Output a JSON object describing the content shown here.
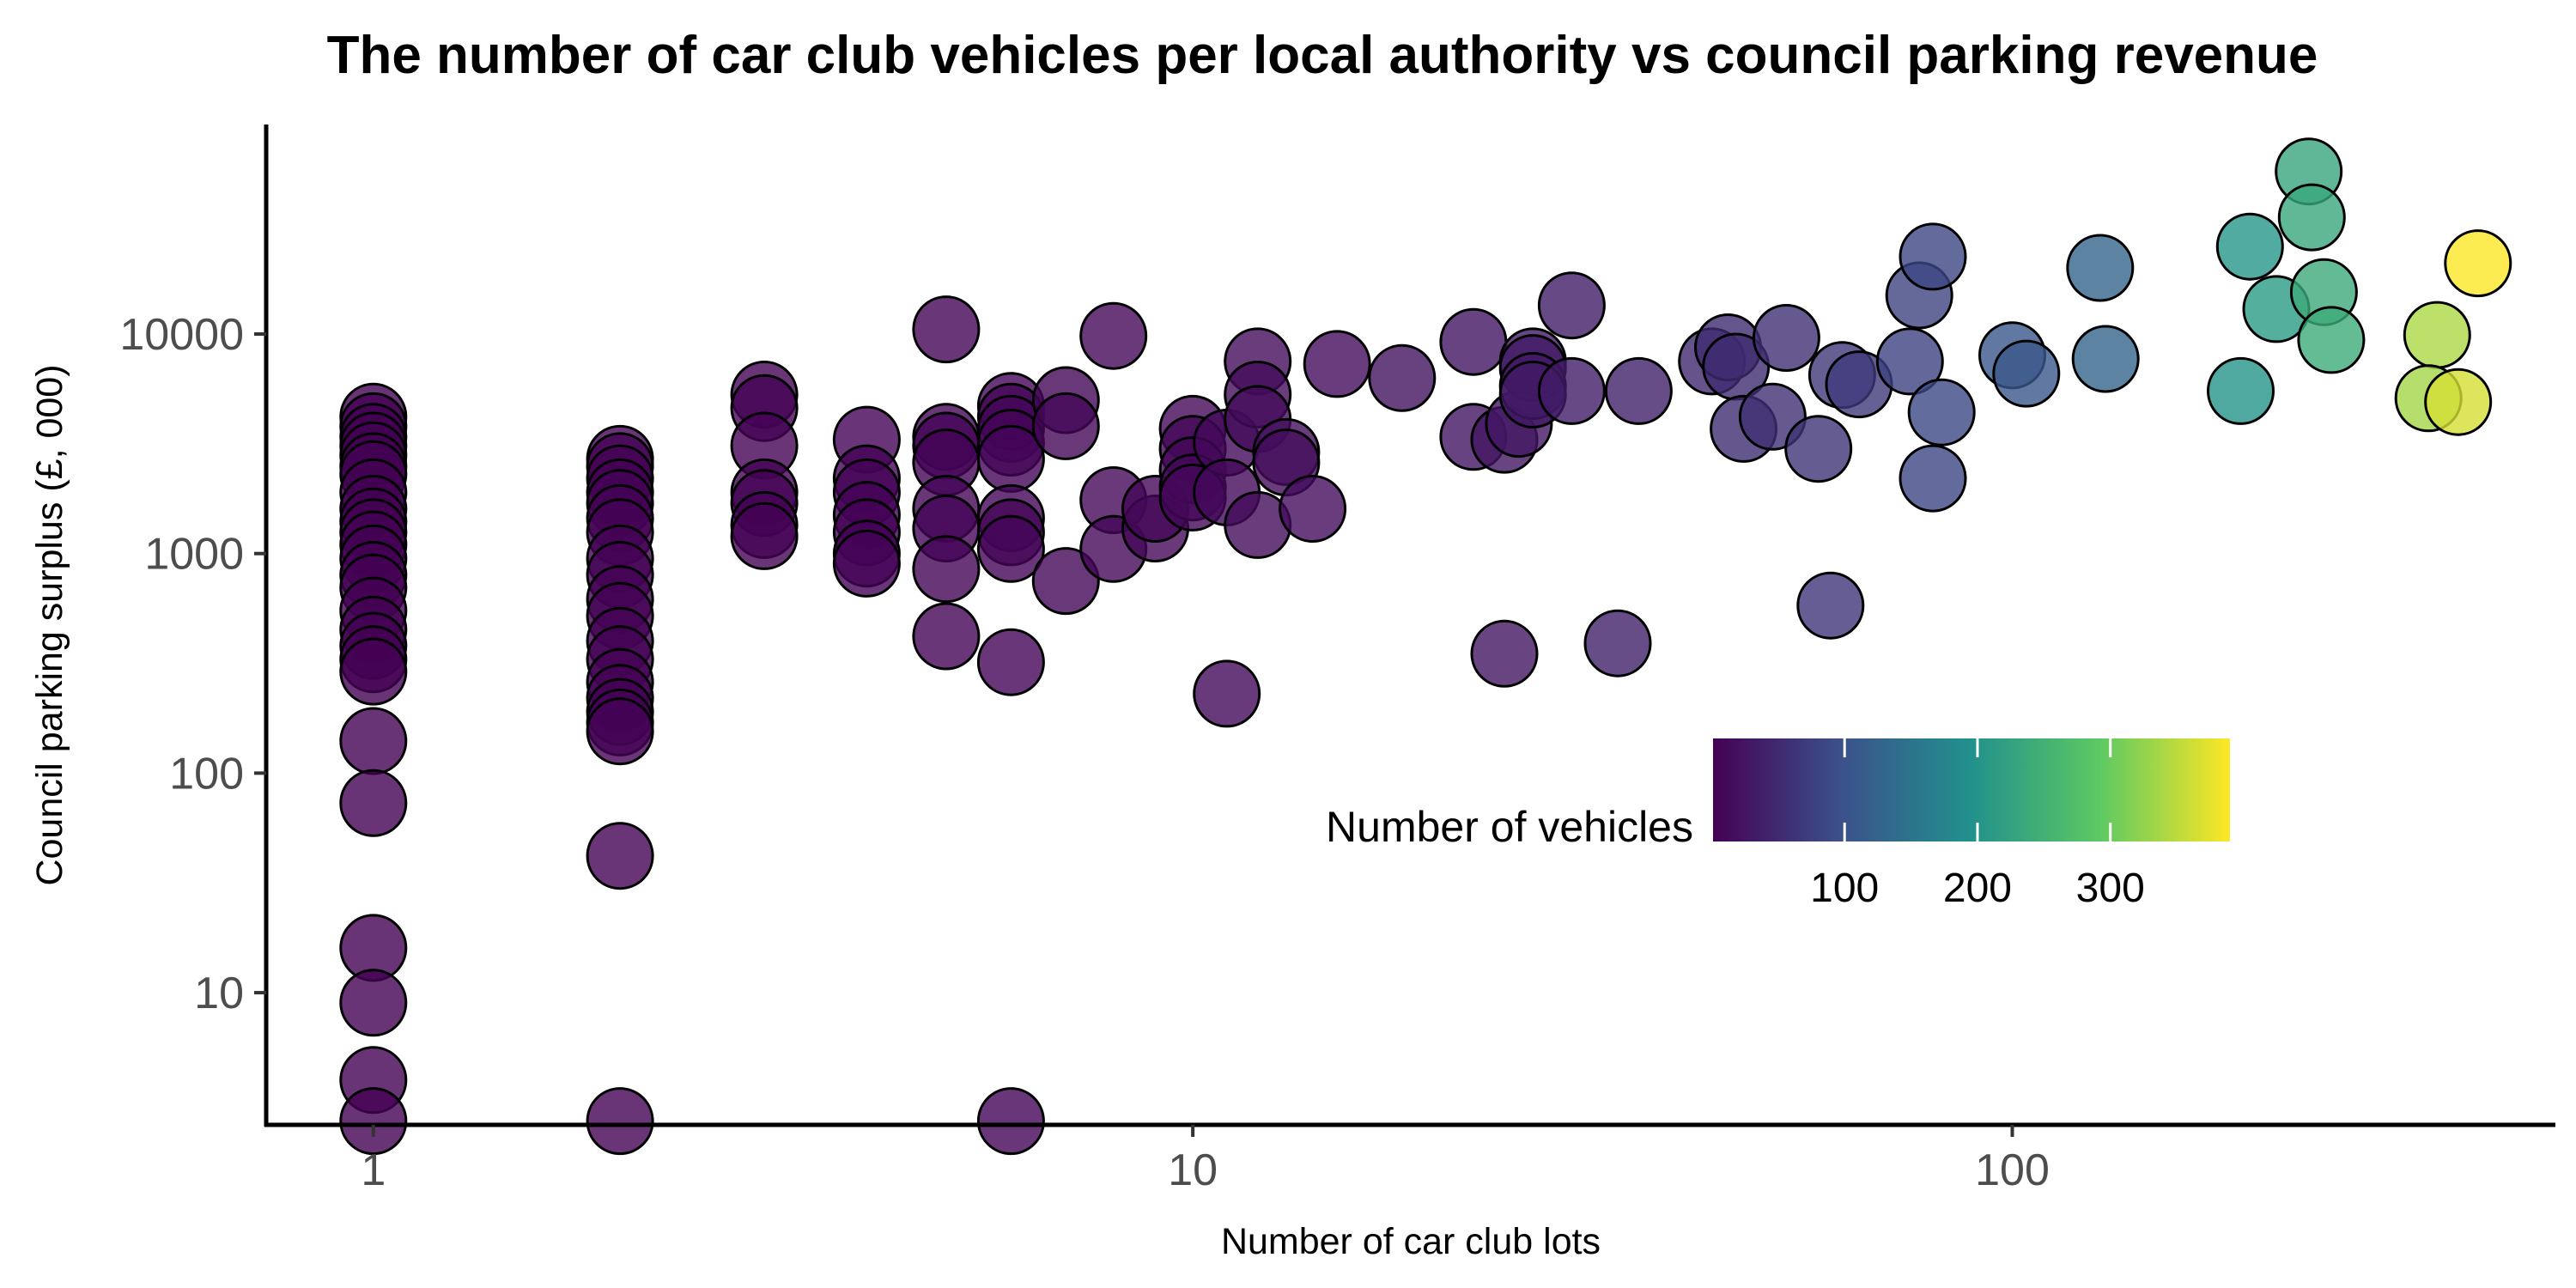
{
  "chart_data": {
    "type": "scatter",
    "title": "The number of car club vehicles per local authority vs council parking revenue",
    "xlabel": "Number of car club lots",
    "ylabel": "Council parking surplus (£, 000)",
    "x_scale": "log",
    "y_scale": "log",
    "xlim": [
      0.74,
      460
    ],
    "ylim": [
      2.5,
      90000
    ],
    "x_ticks": [
      1,
      10,
      100
    ],
    "x_tick_labels": [
      "1",
      "10",
      "100"
    ],
    "y_ticks": [
      10,
      100,
      1000,
      10000
    ],
    "y_tick_labels": [
      "10",
      "100",
      "1000",
      "10000"
    ],
    "grid": false,
    "legend": {
      "title": "Number of vehicles",
      "type": "colorbar",
      "placement": "lower-right",
      "range": [
        1,
        390
      ],
      "ticks": [
        100,
        200,
        300
      ],
      "tick_labels": [
        "100",
        "200",
        "300"
      ],
      "palette": "viridis",
      "colors": [
        "#440154",
        "#3b528b",
        "#21918c",
        "#5ec962",
        "#fde725"
      ]
    },
    "marker": {
      "edge_color": "#000000",
      "opacity": 0.8
    },
    "points": [
      {
        "x": 1,
        "y": 4200,
        "c": 1
      },
      {
        "x": 1,
        "y": 3800,
        "c": 1
      },
      {
        "x": 1,
        "y": 3400,
        "c": 1
      },
      {
        "x": 1,
        "y": 3100,
        "c": 1
      },
      {
        "x": 1,
        "y": 2800,
        "c": 1
      },
      {
        "x": 1,
        "y": 2500,
        "c": 1
      },
      {
        "x": 1,
        "y": 2300,
        "c": 1
      },
      {
        "x": 1,
        "y": 1900,
        "c": 1
      },
      {
        "x": 1,
        "y": 1600,
        "c": 1
      },
      {
        "x": 1,
        "y": 1400,
        "c": 1
      },
      {
        "x": 1,
        "y": 1250,
        "c": 1
      },
      {
        "x": 1,
        "y": 1100,
        "c": 1
      },
      {
        "x": 1,
        "y": 950,
        "c": 1
      },
      {
        "x": 1,
        "y": 800,
        "c": 1
      },
      {
        "x": 1,
        "y": 700,
        "c": 1
      },
      {
        "x": 1,
        "y": 550,
        "c": 1
      },
      {
        "x": 1,
        "y": 450,
        "c": 1
      },
      {
        "x": 1,
        "y": 380,
        "c": 1
      },
      {
        "x": 1,
        "y": 330,
        "c": 1
      },
      {
        "x": 1,
        "y": 290,
        "c": 1
      },
      {
        "x": 1,
        "y": 140,
        "c": 1
      },
      {
        "x": 1,
        "y": 73,
        "c": 1
      },
      {
        "x": 1,
        "y": 16,
        "c": 1
      },
      {
        "x": 1,
        "y": 9,
        "c": 1
      },
      {
        "x": 1,
        "y": 4,
        "c": 1
      },
      {
        "x": 1,
        "y": 2.6,
        "c": 1
      },
      {
        "x": 2,
        "y": 2700,
        "c": 2
      },
      {
        "x": 2,
        "y": 2500,
        "c": 2
      },
      {
        "x": 2,
        "y": 2200,
        "c": 2
      },
      {
        "x": 2,
        "y": 1900,
        "c": 2
      },
      {
        "x": 2,
        "y": 1700,
        "c": 2
      },
      {
        "x": 2,
        "y": 1450,
        "c": 2
      },
      {
        "x": 2,
        "y": 1250,
        "c": 2
      },
      {
        "x": 2,
        "y": 950,
        "c": 2
      },
      {
        "x": 2,
        "y": 800,
        "c": 2
      },
      {
        "x": 2,
        "y": 620,
        "c": 2
      },
      {
        "x": 2,
        "y": 520,
        "c": 2
      },
      {
        "x": 2,
        "y": 400,
        "c": 2
      },
      {
        "x": 2,
        "y": 330,
        "c": 2
      },
      {
        "x": 2,
        "y": 260,
        "c": 2
      },
      {
        "x": 2,
        "y": 220,
        "c": 2
      },
      {
        "x": 2,
        "y": 190,
        "c": 2
      },
      {
        "x": 2,
        "y": 170,
        "c": 2
      },
      {
        "x": 2,
        "y": 155,
        "c": 2
      },
      {
        "x": 2,
        "y": 42,
        "c": 2
      },
      {
        "x": 2,
        "y": 2.6,
        "c": 2
      },
      {
        "x": 3,
        "y": 5300,
        "c": 3
      },
      {
        "x": 3,
        "y": 4600,
        "c": 3
      },
      {
        "x": 3,
        "y": 3100,
        "c": 3
      },
      {
        "x": 3,
        "y": 1900,
        "c": 3
      },
      {
        "x": 3,
        "y": 1700,
        "c": 3
      },
      {
        "x": 3,
        "y": 1350,
        "c": 3
      },
      {
        "x": 3,
        "y": 1200,
        "c": 3
      },
      {
        "x": 4,
        "y": 3300,
        "c": 4
      },
      {
        "x": 4,
        "y": 2200,
        "c": 4
      },
      {
        "x": 4,
        "y": 1900,
        "c": 4
      },
      {
        "x": 4,
        "y": 1500,
        "c": 4
      },
      {
        "x": 4,
        "y": 1250,
        "c": 4
      },
      {
        "x": 4,
        "y": 1000,
        "c": 4
      },
      {
        "x": 4,
        "y": 900,
        "c": 4
      },
      {
        "x": 5,
        "y": 10500,
        "c": 5
      },
      {
        "x": 5,
        "y": 3400,
        "c": 5
      },
      {
        "x": 5,
        "y": 3100,
        "c": 5
      },
      {
        "x": 5,
        "y": 2600,
        "c": 5
      },
      {
        "x": 5,
        "y": 1600,
        "c": 5
      },
      {
        "x": 5,
        "y": 1300,
        "c": 5
      },
      {
        "x": 5,
        "y": 850,
        "c": 5
      },
      {
        "x": 5,
        "y": 420,
        "c": 5
      },
      {
        "x": 6,
        "y": 4700,
        "c": 6
      },
      {
        "x": 6,
        "y": 4200,
        "c": 6
      },
      {
        "x": 6,
        "y": 3700,
        "c": 6
      },
      {
        "x": 6,
        "y": 3200,
        "c": 6
      },
      {
        "x": 6,
        "y": 2700,
        "c": 6
      },
      {
        "x": 6,
        "y": 1450,
        "c": 6
      },
      {
        "x": 6,
        "y": 1250,
        "c": 6
      },
      {
        "x": 6,
        "y": 1050,
        "c": 6
      },
      {
        "x": 6,
        "y": 320,
        "c": 6
      },
      {
        "x": 6,
        "y": 2.6,
        "c": 6
      },
      {
        "x": 7,
        "y": 5000,
        "c": 7
      },
      {
        "x": 7,
        "y": 3800,
        "c": 7
      },
      {
        "x": 7,
        "y": 750,
        "c": 7
      },
      {
        "x": 8,
        "y": 9800,
        "c": 8
      },
      {
        "x": 8,
        "y": 1750,
        "c": 8
      },
      {
        "x": 8,
        "y": 1050,
        "c": 8
      },
      {
        "x": 9,
        "y": 1300,
        "c": 9
      },
      {
        "x": 9,
        "y": 1600,
        "c": 9
      },
      {
        "x": 10,
        "y": 3700,
        "c": 10
      },
      {
        "x": 10,
        "y": 3000,
        "c": 10
      },
      {
        "x": 10,
        "y": 2400,
        "c": 10
      },
      {
        "x": 10,
        "y": 2000,
        "c": 10
      },
      {
        "x": 10,
        "y": 1800,
        "c": 10
      },
      {
        "x": 11,
        "y": 3200,
        "c": 11
      },
      {
        "x": 11,
        "y": 1900,
        "c": 11
      },
      {
        "x": 11,
        "y": 230,
        "c": 11
      },
      {
        "x": 12,
        "y": 7500,
        "c": 13
      },
      {
        "x": 12,
        "y": 5300,
        "c": 13
      },
      {
        "x": 12,
        "y": 4100,
        "c": 13
      },
      {
        "x": 12,
        "y": 1350,
        "c": 13
      },
      {
        "x": 13,
        "y": 2900,
        "c": 14
      },
      {
        "x": 13,
        "y": 2600,
        "c": 14
      },
      {
        "x": 14,
        "y": 1600,
        "c": 15
      },
      {
        "x": 15,
        "y": 7300,
        "c": 16
      },
      {
        "x": 18,
        "y": 6300,
        "c": 20
      },
      {
        "x": 22,
        "y": 9200,
        "c": 24
      },
      {
        "x": 22,
        "y": 3400,
        "c": 24
      },
      {
        "x": 24,
        "y": 3300,
        "c": 26
      },
      {
        "x": 25,
        "y": 3900,
        "c": 28
      },
      {
        "x": 24,
        "y": 350,
        "c": 26
      },
      {
        "x": 26,
        "y": 7500,
        "c": 30
      },
      {
        "x": 26,
        "y": 7000,
        "c": 30
      },
      {
        "x": 26,
        "y": 5800,
        "c": 30
      },
      {
        "x": 26,
        "y": 5300,
        "c": 30
      },
      {
        "x": 29,
        "y": 13500,
        "c": 34
      },
      {
        "x": 29,
        "y": 5500,
        "c": 34
      },
      {
        "x": 33,
        "y": 390,
        "c": 38
      },
      {
        "x": 35,
        "y": 5500,
        "c": 40
      },
      {
        "x": 43,
        "y": 7500,
        "c": 48
      },
      {
        "x": 45,
        "y": 8700,
        "c": 50
      },
      {
        "x": 46,
        "y": 7100,
        "c": 52
      },
      {
        "x": 47,
        "y": 3700,
        "c": 53
      },
      {
        "x": 51,
        "y": 4200,
        "c": 56
      },
      {
        "x": 53,
        "y": 9600,
        "c": 58
      },
      {
        "x": 58,
        "y": 3000,
        "c": 62
      },
      {
        "x": 62,
        "y": 6500,
        "c": 66
      },
      {
        "x": 65,
        "y": 5900,
        "c": 68
      },
      {
        "x": 60,
        "y": 580,
        "c": 64
      },
      {
        "x": 75,
        "y": 7500,
        "c": 78
      },
      {
        "x": 77,
        "y": 15000,
        "c": 80
      },
      {
        "x": 80,
        "y": 22500,
        "c": 84
      },
      {
        "x": 82,
        "y": 4400,
        "c": 86
      },
      {
        "x": 80,
        "y": 2200,
        "c": 84
      },
      {
        "x": 100,
        "y": 8000,
        "c": 104
      },
      {
        "x": 104,
        "y": 6600,
        "c": 106
      },
      {
        "x": 128,
        "y": 20000,
        "c": 126
      },
      {
        "x": 130,
        "y": 7700,
        "c": 128
      },
      {
        "x": 190,
        "y": 5500,
        "c": 200
      },
      {
        "x": 195,
        "y": 25000,
        "c": 205
      },
      {
        "x": 210,
        "y": 13000,
        "c": 212
      },
      {
        "x": 230,
        "y": 55000,
        "c": 230
      },
      {
        "x": 232,
        "y": 34000,
        "c": 232
      },
      {
        "x": 240,
        "y": 15500,
        "c": 238
      },
      {
        "x": 245,
        "y": 9400,
        "c": 240
      },
      {
        "x": 330,
        "y": 9900,
        "c": 340
      },
      {
        "x": 322,
        "y": 5100,
        "c": 335
      },
      {
        "x": 350,
        "y": 4900,
        "c": 365
      },
      {
        "x": 370,
        "y": 21000,
        "c": 390
      }
    ]
  }
}
